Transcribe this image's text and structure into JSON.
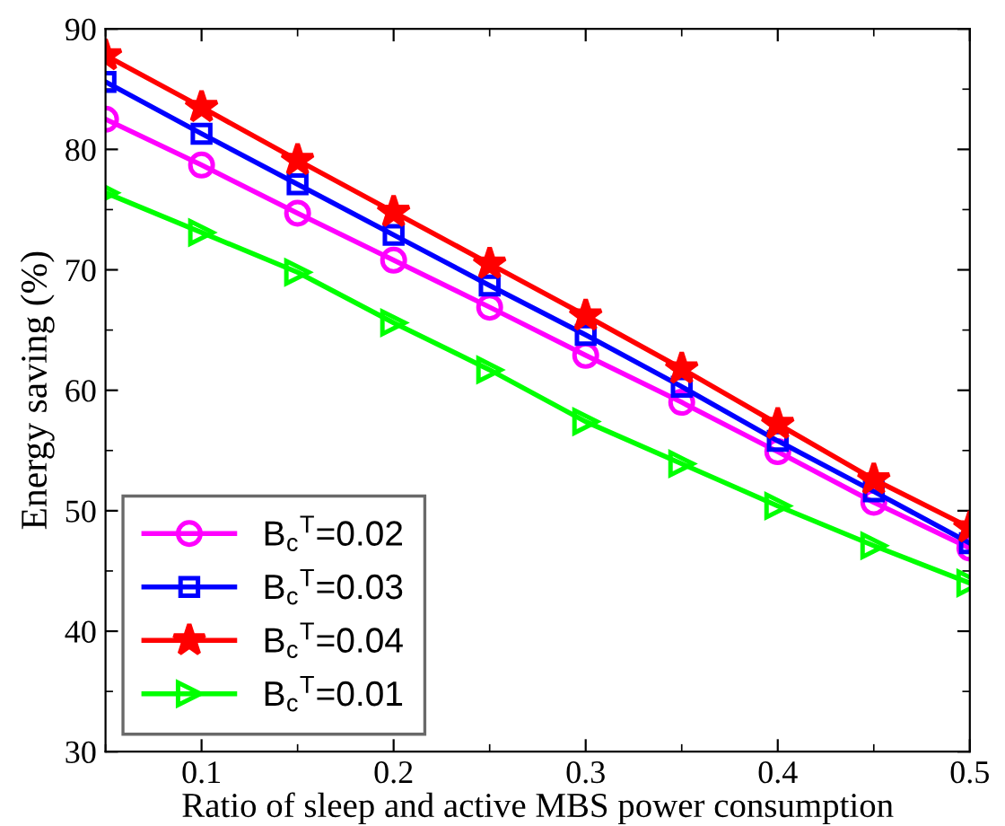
{
  "chart_data": {
    "type": "line",
    "xlabel": "Ratio of sleep and active MBS power consumption",
    "ylabel": "Energy saving (%)",
    "x": [
      0.05,
      0.1,
      0.15,
      0.2,
      0.25,
      0.3,
      0.35,
      0.4,
      0.45,
      0.5
    ],
    "series": [
      {
        "name": "B$_{c}$$^{T}$=0.02",
        "color": "#ff00ff",
        "marker": "circle",
        "values": [
          82.5,
          78.7,
          74.7,
          70.8,
          66.9,
          62.9,
          59.0,
          54.9,
          50.7,
          46.9
        ]
      },
      {
        "name": "B$_{c}$$^{T}$=0.03",
        "color": "#0000ff",
        "marker": "square",
        "values": [
          85.6,
          81.3,
          77.1,
          72.9,
          68.7,
          64.6,
          60.3,
          55.8,
          51.6,
          47.3
        ]
      },
      {
        "name": "B$_{c}$$^{T}$=0.04",
        "color": "#ff0000",
        "marker": "star",
        "values": [
          87.8,
          83.5,
          79.1,
          74.8,
          70.5,
          66.2,
          61.8,
          57.2,
          52.6,
          48.6
        ]
      },
      {
        "name": "B$_{c}$$^{T}$=0.01",
        "color": "#00ff00",
        "marker": "triangle",
        "values": [
          76.4,
          73.1,
          69.8,
          65.6,
          61.7,
          57.4,
          53.9,
          50.4,
          47.1,
          44.0
        ]
      }
    ],
    "xlim": [
      0.05,
      0.5
    ],
    "xticks": [
      0.1,
      0.2,
      0.3,
      0.4,
      0.5
    ],
    "ylim": [
      30,
      90
    ],
    "yticks": [
      30,
      40,
      50,
      60,
      70,
      80,
      90
    ],
    "grid": false,
    "legend": "bottom left",
    "line_style": "solid"
  }
}
